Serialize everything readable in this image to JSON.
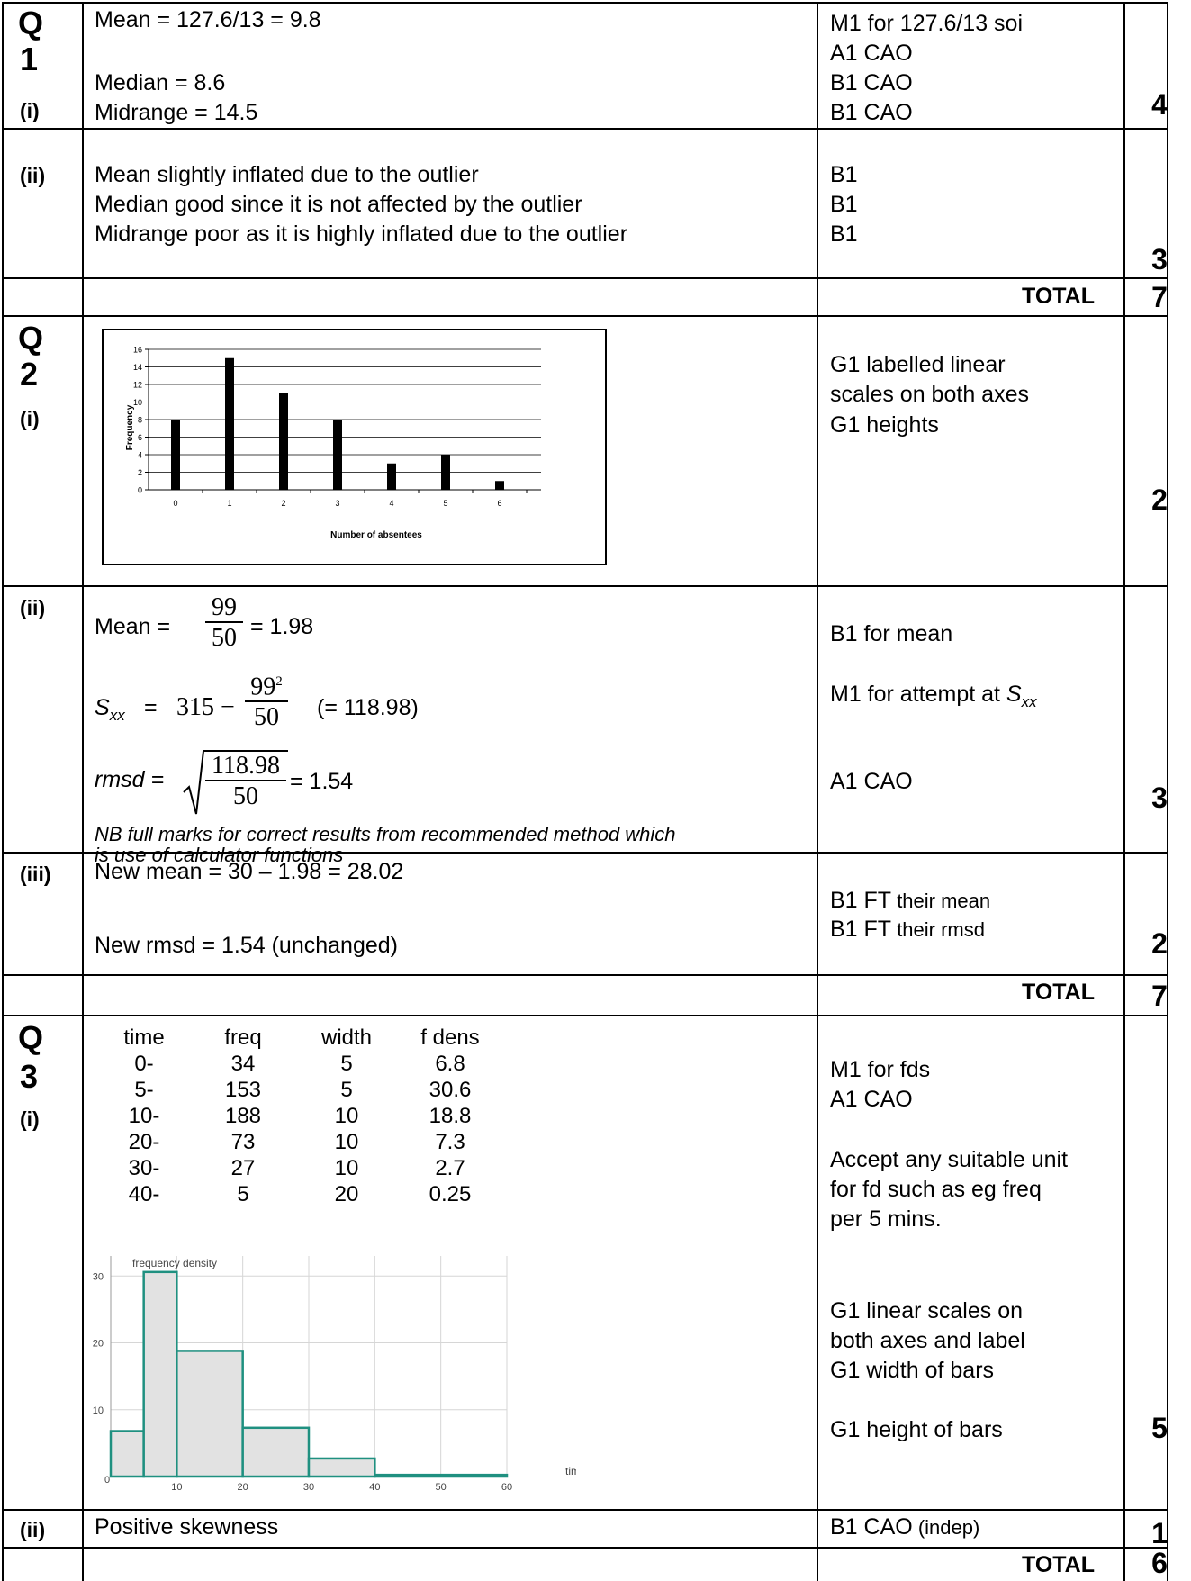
{
  "q1": {
    "label": [
      "Q",
      "1"
    ],
    "part_i": "(i)",
    "lines": [
      "Mean = 127.6/13 = 9.8",
      "Median = 8.6",
      "Midrange = 14.5"
    ],
    "marks_i": [
      "M1 for 127.6/13 soi",
      "A1 CAO",
      "B1 CAO",
      "B1 CAO"
    ],
    "total_i": "4",
    "part_ii": "(ii)",
    "lines_ii": [
      "Mean slightly inflated due to the outlier",
      "Median good since it is not affected by the outlier",
      "Midrange poor as it is highly inflated due to the outlier"
    ],
    "marks_ii": [
      "B1",
      "B1",
      "B1"
    ],
    "total_ii": "3",
    "total_label": "TOTAL",
    "total": "7"
  },
  "q2": {
    "label": [
      "Q",
      "2"
    ],
    "part_i": "(i)",
    "marks_i": [
      "G1 labelled linear",
      "scales on both axes",
      "G1 heights"
    ],
    "total_i": "2",
    "part_ii": "(ii)",
    "mean_label": "Mean  =",
    "mean_num": "99",
    "mean_den": "50",
    "mean_result": "= 1.98",
    "sxx_label": "S",
    "sxx_sub": "xx",
    "sxx_eq": "=",
    "sxx_315": "315 −",
    "sxx_num": "99",
    "sxx_sup": "2",
    "sxx_den": "50",
    "sxx_result": "(= 118.98)",
    "rmsd_label": "rmsd =",
    "rmsd_num": "118.98",
    "rmsd_den": "50",
    "rmsd_result": "= 1.54",
    "note": [
      "NB full marks for correct results from recommended method which",
      "is use of calculator functions"
    ],
    "marks_ii": [
      "B1 for mean",
      "M1 for attempt at ",
      "A1 CAO"
    ],
    "marks_ii_sxx": "S",
    "marks_ii_sxx_sub": "xx",
    "total_ii": "3",
    "part_iii": "(iii)",
    "lines_iii": [
      "New mean = 30 – 1.98 = 28.02",
      "New rmsd = 1.54 (unchanged)"
    ],
    "marks_iii": [
      {
        "a": "B1 FT",
        "b": " their mean"
      },
      {
        "a": "B1 FT",
        "b": " their rmsd"
      }
    ],
    "total_iii": "2",
    "total_label": "TOTAL",
    "total": "7"
  },
  "q3": {
    "label": [
      "Q",
      "3"
    ],
    "part_i": "(i)",
    "table_headers": [
      "time",
      "freq",
      "width",
      "f dens"
    ],
    "table_rows": [
      [
        "0-",
        "34",
        "5",
        "6.8"
      ],
      [
        "5-",
        "153",
        "5",
        "30.6"
      ],
      [
        "10-",
        "188",
        "10",
        "18.8"
      ],
      [
        "20-",
        "73",
        "10",
        "7.3"
      ],
      [
        "30-",
        "27",
        "10",
        "2.7"
      ],
      [
        "40-",
        "5",
        "20",
        "0.25"
      ]
    ],
    "marks_i": [
      "M1 for fds",
      "A1 CAO",
      "Accept any suitable unit",
      "for fd such as eg freq",
      "per 5 mins.",
      "G1 linear scales on",
      "both axes and label",
      "G1 width of bars",
      "G1 height of bars"
    ],
    "total_i": "5",
    "part_ii": "(ii)",
    "line_ii": "Positive skewness",
    "marks_ii_a": "B1 CAO",
    "marks_ii_b": " (indep)",
    "total_ii": "1",
    "total_label": "TOTAL",
    "total": "6"
  },
  "chart_data": [
    {
      "type": "bar",
      "xlabel": "Number of absentees",
      "ylabel": "Frequency",
      "categories": [
        "0",
        "1",
        "2",
        "3",
        "4",
        "5",
        "6"
      ],
      "values": [
        8,
        15,
        11,
        8,
        3,
        4,
        1
      ],
      "yticks": [
        "0",
        "2",
        "4",
        "6",
        "8",
        "10",
        "12",
        "14",
        "16"
      ],
      "ylim": [
        0,
        16
      ],
      "grid": true
    },
    {
      "type": "histogram",
      "ylabel": "frequency density",
      "xlabel": "time",
      "bins": [
        [
          0,
          5
        ],
        [
          5,
          10
        ],
        [
          10,
          20
        ],
        [
          20,
          30
        ],
        [
          30,
          40
        ],
        [
          40,
          60
        ]
      ],
      "values": [
        6.8,
        30.6,
        18.8,
        7.3,
        2.7,
        0.25
      ],
      "xticks": [
        "10",
        "20",
        "30",
        "40",
        "50",
        "60"
      ],
      "yticks": [
        "10",
        "20",
        "30"
      ],
      "origin_label": "0",
      "xlim": [
        0,
        60
      ],
      "ylim": [
        0,
        33
      ],
      "bar_color": "#1f9080",
      "fill_color": "#e2e2e2"
    }
  ]
}
